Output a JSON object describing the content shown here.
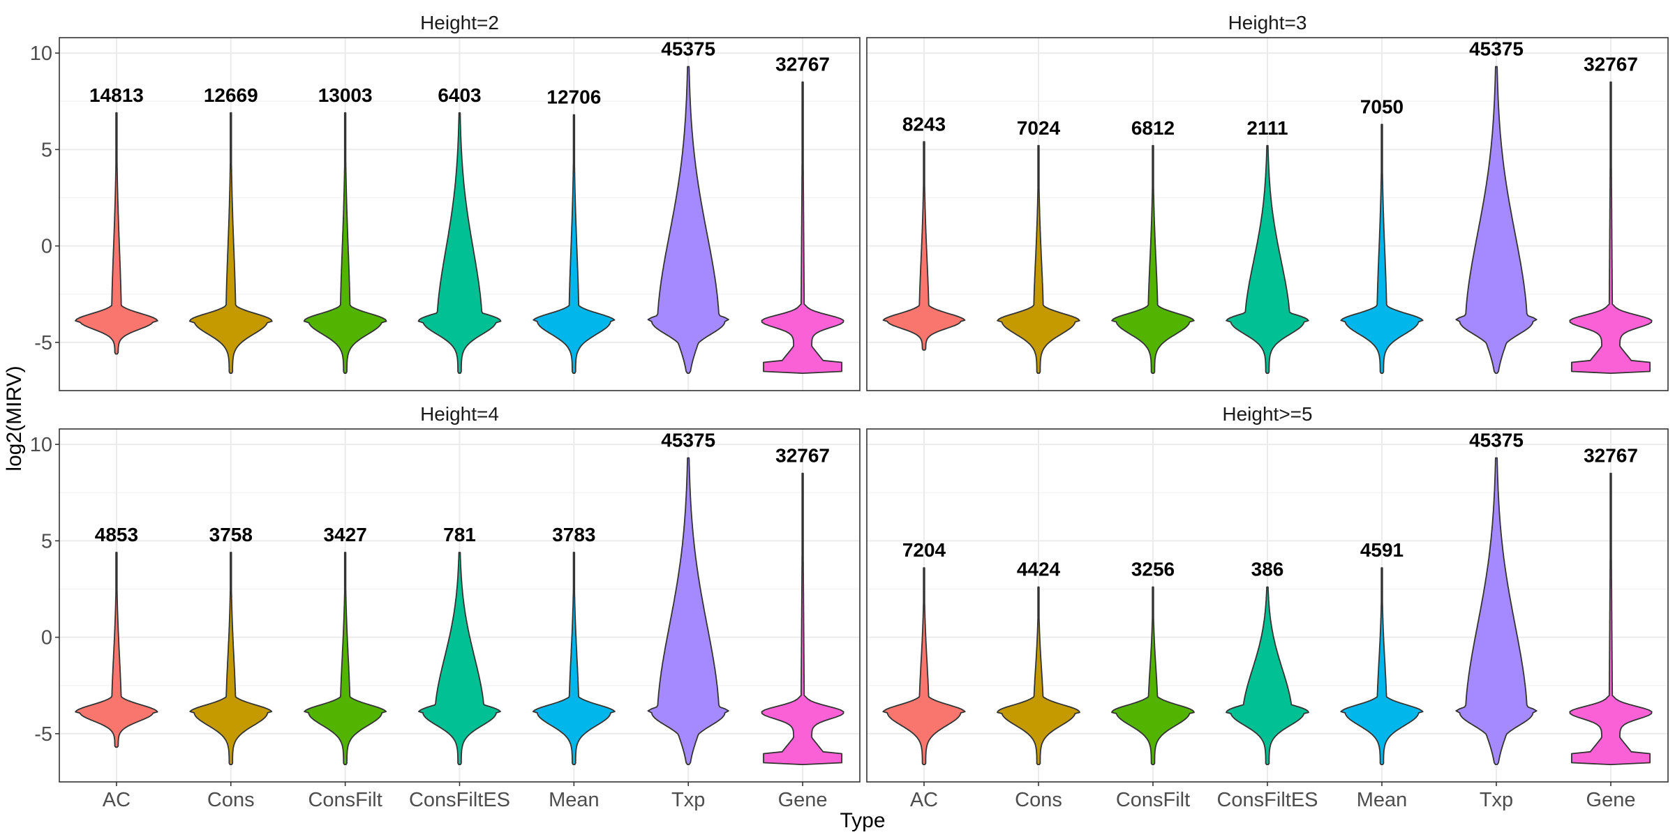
{
  "chart_data": {
    "type": "violin",
    "facet_labels": [
      "Height=2",
      "Height=3",
      "Height=4",
      "Height>=5"
    ],
    "categories": [
      "AC",
      "Cons",
      "ConsFilt",
      "ConsFiltES",
      "Mean",
      "Txp",
      "Gene"
    ],
    "colors": [
      "#F8766D",
      "#C49A00",
      "#53B400",
      "#00C094",
      "#00B6EB",
      "#A58AFF",
      "#FB61D7"
    ],
    "xlabel": "Type",
    "ylabel": "log2(MIRV)",
    "yticks": [
      -5,
      0,
      5,
      10
    ],
    "ylim": [
      -7.5,
      10.8
    ],
    "grid": true,
    "panels": [
      {
        "label": "Height=2",
        "violins": [
          {
            "category": "AC",
            "count": "14813",
            "min": -5.6,
            "max": 6.9,
            "mode": -3.9
          },
          {
            "category": "Cons",
            "count": "12669",
            "min": -6.6,
            "max": 6.9,
            "mode": -3.9
          },
          {
            "category": "ConsFilt",
            "count": "13003",
            "min": -6.6,
            "max": 6.9,
            "mode": -3.9
          },
          {
            "category": "ConsFiltES",
            "count": "6403",
            "min": -6.6,
            "max": 6.9,
            "mode": -3.9
          },
          {
            "category": "Mean",
            "count": "12706",
            "min": -6.6,
            "max": 6.8,
            "mode": -3.9
          },
          {
            "category": "Txp",
            "count": "45375",
            "min": -6.6,
            "max": 9.3,
            "mode": -3.9
          },
          {
            "category": "Gene",
            "count": "32767",
            "min": -6.6,
            "max": 8.5,
            "mode": -3.9
          }
        ]
      },
      {
        "label": "Height=3",
        "violins": [
          {
            "category": "AC",
            "count": "8243",
            "min": -5.4,
            "max": 5.4,
            "mode": -3.9
          },
          {
            "category": "Cons",
            "count": "7024",
            "min": -6.6,
            "max": 5.2,
            "mode": -3.9
          },
          {
            "category": "ConsFilt",
            "count": "6812",
            "min": -6.6,
            "max": 5.2,
            "mode": -3.9
          },
          {
            "category": "ConsFiltES",
            "count": "2111",
            "min": -6.6,
            "max": 5.2,
            "mode": -3.9
          },
          {
            "category": "Mean",
            "count": "7050",
            "min": -6.6,
            "max": 6.3,
            "mode": -3.9
          },
          {
            "category": "Txp",
            "count": "45375",
            "min": -6.6,
            "max": 9.3,
            "mode": -3.9
          },
          {
            "category": "Gene",
            "count": "32767",
            "min": -6.6,
            "max": 8.5,
            "mode": -3.9
          }
        ]
      },
      {
        "label": "Height=4",
        "violins": [
          {
            "category": "AC",
            "count": "4853",
            "min": -5.7,
            "max": 4.4,
            "mode": -3.9
          },
          {
            "category": "Cons",
            "count": "3758",
            "min": -6.6,
            "max": 4.4,
            "mode": -3.9
          },
          {
            "category": "ConsFilt",
            "count": "3427",
            "min": -6.6,
            "max": 4.4,
            "mode": -3.9
          },
          {
            "category": "ConsFiltES",
            "count": "781",
            "min": -6.6,
            "max": 4.4,
            "mode": -3.9
          },
          {
            "category": "Mean",
            "count": "3783",
            "min": -6.6,
            "max": 4.4,
            "mode": -3.9
          },
          {
            "category": "Txp",
            "count": "45375",
            "min": -6.6,
            "max": 9.3,
            "mode": -3.9
          },
          {
            "category": "Gene",
            "count": "32767",
            "min": -6.6,
            "max": 8.5,
            "mode": -3.9
          }
        ]
      },
      {
        "label": "Height>=5",
        "violins": [
          {
            "category": "AC",
            "count": "7204",
            "min": -6.6,
            "max": 3.6,
            "mode": -3.9
          },
          {
            "category": "Cons",
            "count": "4424",
            "min": -6.6,
            "max": 2.6,
            "mode": -3.9
          },
          {
            "category": "ConsFilt",
            "count": "3256",
            "min": -6.6,
            "max": 2.6,
            "mode": -3.9
          },
          {
            "category": "ConsFiltES",
            "count": "386",
            "min": -6.6,
            "max": 2.6,
            "mode": -3.9
          },
          {
            "category": "Mean",
            "count": "4591",
            "min": -6.6,
            "max": 3.6,
            "mode": -3.9
          },
          {
            "category": "Txp",
            "count": "45375",
            "min": -6.6,
            "max": 9.3,
            "mode": -3.9
          },
          {
            "category": "Gene",
            "count": "32767",
            "min": -6.6,
            "max": 8.5,
            "mode": -3.9
          }
        ]
      }
    ]
  }
}
